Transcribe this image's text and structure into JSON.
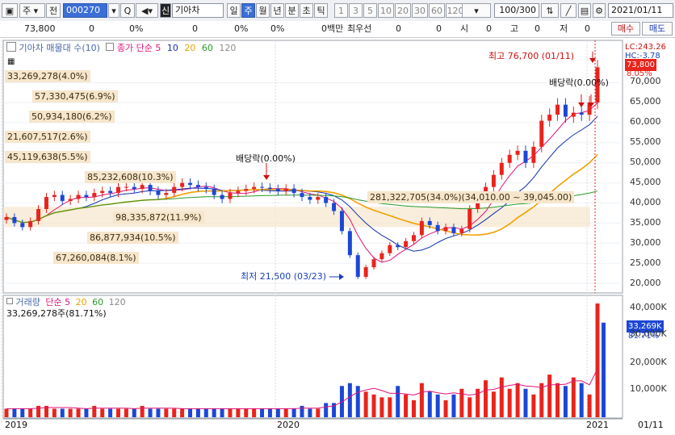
{
  "toolbar": {
    "chart_icon": "chart-icon",
    "type_select": "주",
    "all_label": "전",
    "code_input": "000270",
    "search_icon": "search-icon",
    "q_label": "Q",
    "sound_icon": "speaker-icon",
    "new_badge": "신",
    "stock_name": "기아차",
    "periods": [
      "일",
      "주",
      "월",
      "년",
      "분",
      "초",
      "틱"
    ],
    "selected_period": "주",
    "intervals": [
      "1",
      "3",
      "5",
      "10",
      "20",
      "30",
      "60",
      "120"
    ],
    "count": "100/300",
    "date": "2021/01/11"
  },
  "quote": {
    "price": "73,800",
    "chg1": "0",
    "pct1": "0%",
    "chg2": "0",
    "pct2": "0%",
    "vol_label": "0백만",
    "pref_label": "최우선",
    "pref_v1": "0",
    "pref_v2": "0",
    "o_label": "시",
    "o_val": "0",
    "h_label": "고",
    "h_val": "0",
    "l_label": "저",
    "l_val": "0",
    "buy": "매수",
    "sell": "매도"
  },
  "price_panel": {
    "title": "기아차 매물대 수(10)",
    "ma_title": "종가 단순 5",
    "ma_periods": [
      "10",
      "20",
      "60",
      "120"
    ],
    "ma_colors": [
      "#e0137a",
      "#1030b0",
      "#f0a000",
      "#2a9a2a",
      "#8a8a8a"
    ],
    "right_lc": "LC:243.26",
    "right_hc": "HC:-3.78",
    "current_price": "73,800",
    "current_pct": "8.05%",
    "y_ticks": [
      "70,000",
      "65,000",
      "60,000",
      "55,000",
      "50,000",
      "45,000",
      "40,000",
      "35,000",
      "30,000",
      "25,000",
      "20,000"
    ],
    "max_label": "최고 76,700 (01/11)",
    "min_label": "최저 21,500 (03/23)",
    "dividend1": "배당락(0.00%)",
    "dividend2": "배당락(0.00%)",
    "volume_profile": [
      "33,269,278(4.0%)",
      "57,330,475(6.9%)",
      "50,934,180(6.2%)",
      "21,607,517(2.6%)",
      "45,119,638(5.5%)",
      "85,232,608(10.3%)",
      "281,322,705(34.0%)(34,010.00 ~ 39,045.00)",
      "98,335,872(11.9%)",
      "86,877,934(10.5%)",
      "67,260,084(8.1%)"
    ]
  },
  "volume_panel": {
    "title": "거래량",
    "ma_title": "단순 5",
    "ma_periods": [
      "20",
      "60",
      "120"
    ],
    "value_label": "33,269,278주(81.71%)",
    "right_value": "33,269K",
    "right_pct": "81.71%",
    "y_ticks": [
      "40,000K",
      "30,000K",
      "20,000K",
      "10,000K"
    ]
  },
  "x_axis": {
    "labels": [
      "2019",
      "2020",
      "2021"
    ],
    "right_label": "01/11"
  },
  "colors": {
    "up": "#e8241c",
    "down": "#1c47d6",
    "highlight": "#f6e6cc",
    "accent": "#3b6fd6"
  },
  "chart_data": {
    "type": "candlestick",
    "title": "기아차",
    "period": "weekly",
    "x": [
      "2019",
      "2020",
      "2021"
    ],
    "price_range": [
      20000,
      78000
    ],
    "volume_range": [
      0,
      42000000
    ],
    "close_series": [
      36500,
      35000,
      34000,
      35500,
      38500,
      41500,
      42000,
      40500,
      41000,
      42000,
      41500,
      42500,
      43000,
      42500,
      44000,
      44000,
      43500,
      44500,
      43000,
      42000,
      42500,
      44000,
      45000,
      44500,
      44000,
      43500,
      42000,
      41000,
      42500,
      43000,
      43500,
      44000,
      43800,
      43500,
      43000,
      43600,
      42500,
      41500,
      40800,
      41500,
      40000,
      38000,
      33000,
      27000,
      21600,
      24000,
      26000,
      27500,
      29500,
      29000,
      30500,
      32000,
      35500,
      34500,
      33000,
      34000,
      32500,
      33500,
      38500,
      41000,
      44000,
      47000,
      50000,
      52000,
      53000,
      50000,
      54000,
      60500,
      62000,
      64500,
      61500,
      62500,
      62000,
      65000,
      73800
    ],
    "volume_series": [
      3,
      3,
      3,
      3,
      4,
      4,
      3,
      3,
      3,
      3,
      3,
      4,
      3,
      3,
      3,
      3,
      3,
      4,
      3,
      3,
      3,
      3,
      3,
      3,
      3,
      3,
      3,
      3,
      3,
      3,
      3,
      3,
      3,
      3,
      3,
      3,
      3,
      4,
      3,
      3,
      5,
      5,
      11,
      12,
      11,
      9,
      8,
      7,
      7,
      11,
      8,
      6,
      12,
      9,
      8,
      6,
      8,
      10,
      7,
      10,
      13,
      9,
      14,
      10,
      12,
      10,
      8,
      12,
      15,
      12,
      11,
      14,
      12,
      8,
      40
    ]
  }
}
